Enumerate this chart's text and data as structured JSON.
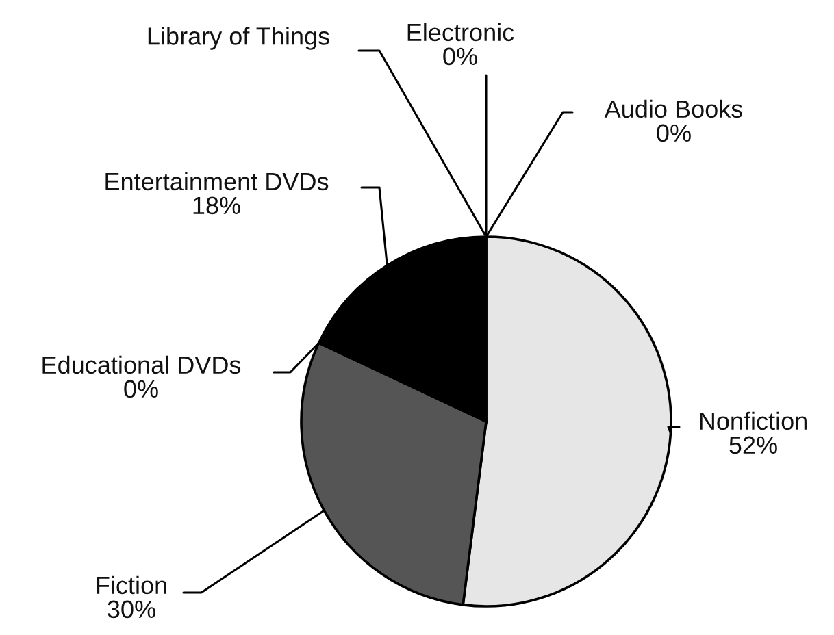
{
  "chart_data": {
    "type": "pie",
    "categories": [
      "Audio Books",
      "Nonfiction",
      "Fiction",
      "Educational DVDs",
      "Entertainment DVDs",
      "Library of Things",
      "Electronic"
    ],
    "values": [
      0,
      52,
      30,
      0,
      18,
      0,
      0
    ],
    "value_labels": [
      "0%",
      "52%",
      "30%",
      "0%",
      "18%",
      null,
      "0%"
    ],
    "colors": [
      "#ffffff",
      "#e6e6e6",
      "#555555",
      "#ffffff",
      "#000000",
      "#ffffff",
      "#ffffff"
    ]
  }
}
